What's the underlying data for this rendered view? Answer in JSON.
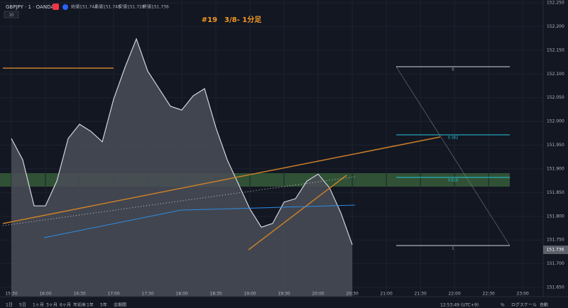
{
  "header": {
    "symbol": "GBPJPY · 1 · OANDA",
    "open": "始値151.744",
    "high": "高値151.748",
    "low": "安値151.728",
    "close": "終値151.736",
    "volume": "10"
  },
  "chart_data": {
    "type": "area",
    "title": "#19　3/8- 1分足",
    "x": [
      "15:30",
      "15:40",
      "15:50",
      "16:00",
      "16:10",
      "16:20",
      "16:30",
      "16:40",
      "16:50",
      "17:00",
      "17:10",
      "17:20",
      "17:30",
      "17:40",
      "17:50",
      "18:00",
      "18:10",
      "18:20",
      "18:30",
      "18:40",
      "18:50",
      "19:00",
      "19:10",
      "19:20",
      "19:30",
      "19:40",
      "19:50",
      "20:00",
      "20:10",
      "20:20",
      "20:30"
    ],
    "series": [
      {
        "name": "GBPJPY",
        "color": "#d1d4dc",
        "values": [
          151.964,
          151.919,
          151.822,
          151.822,
          151.874,
          151.964,
          151.994,
          151.979,
          151.957,
          152.047,
          152.114,
          152.174,
          152.106,
          152.069,
          152.032,
          152.024,
          152.054,
          152.069,
          151.987,
          151.919,
          151.867,
          151.815,
          151.777,
          151.785,
          151.83,
          151.837,
          151.874,
          151.889,
          151.86,
          151.807,
          151.74
        ]
      }
    ],
    "last_price": 151.736,
    "xlim": [
      "15:20",
      "23:18"
    ],
    "xticks": [
      "15:30",
      "16:00",
      "16:30",
      "17:00",
      "17:30",
      "18:00",
      "18:30",
      "19:00",
      "19:30",
      "20:00",
      "20:30",
      "21:00",
      "21:30",
      "22:00",
      "22:30",
      "23:00"
    ],
    "ylim": [
      151.65,
      152.25
    ],
    "yticks": [
      {
        "value": 152.25,
        "label": "152.250"
      },
      {
        "value": 152.2,
        "label": "152.200"
      },
      {
        "value": 152.15,
        "label": "152.150"
      },
      {
        "value": 152.1,
        "label": "152.100"
      },
      {
        "value": 152.05,
        "label": "152.050"
      },
      {
        "value": 152.0,
        "label": "152.000"
      },
      {
        "value": 151.95,
        "label": "151.950"
      },
      {
        "value": 151.9,
        "label": "151.900"
      },
      {
        "value": 151.85,
        "label": "151.850"
      },
      {
        "value": 151.8,
        "label": "151.800"
      },
      {
        "value": 151.75,
        "label": "151.750"
      },
      {
        "value": 151.7,
        "label": "151.700"
      },
      {
        "value": 151.65,
        "label": "151.650"
      }
    ],
    "grid": true,
    "fib_labels": [
      "0",
      "0.382",
      "0.618",
      "1"
    ]
  },
  "toolbar": {
    "ranges": [
      "1日",
      "5日",
      "1ヶ月",
      "3ヶ月",
      "6ヶ月",
      "年初来",
      "1年",
      "5年",
      "全期間"
    ],
    "clock": "12:53:49 (UTC+9)",
    "percent": "%",
    "log": "ログスケール",
    "auto": "自動"
  }
}
